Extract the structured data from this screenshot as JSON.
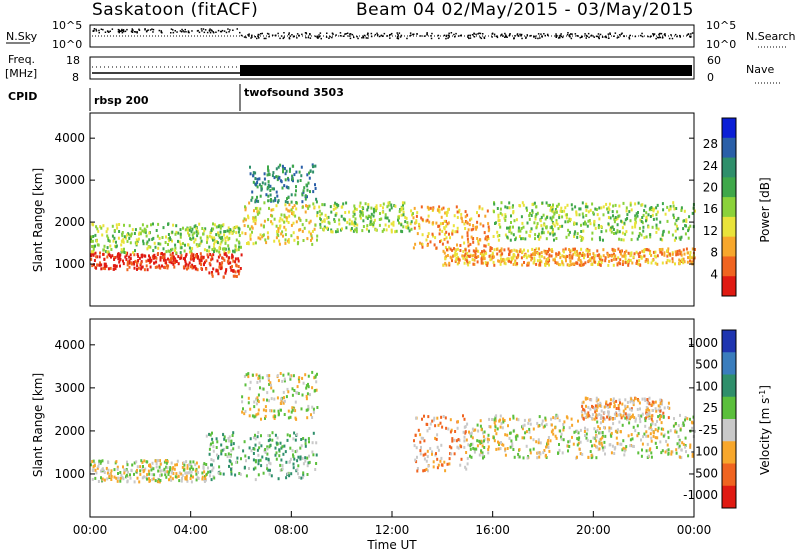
{
  "header": {
    "station": "Saskatoon (fitACF)",
    "beam_range": "Beam 04 02/May/2015 - 03/May/2015"
  },
  "top_panels": {
    "nsky_label": "N.Sky",
    "nsky_ticks": [
      "10^5",
      "10^0"
    ],
    "nsearch_label": "N.Search",
    "nsearch_ticks": [
      "10^5",
      "10^0"
    ],
    "freq_label": "Freq.",
    "freq_unit": "[MHz]",
    "freq_ticks": [
      "18",
      "8"
    ],
    "nave_label": "Nave",
    "nave_ticks": [
      "60",
      "0"
    ],
    "cpid_label": "CPID",
    "cpid_segments": [
      {
        "label": "rbsp 200",
        "start_hour": 0
      },
      {
        "label": "twofsound 3503",
        "start_hour": 6
      }
    ]
  },
  "chart_data": [
    {
      "type": "heatmap",
      "ylabel": "Slant Range [km]",
      "yticks": [
        "1000",
        "2000",
        "3000",
        "4000"
      ],
      "colorbar": {
        "label": "Power [dB]",
        "ticks": [
          "4",
          "8",
          "12",
          "16",
          "20",
          "24",
          "28"
        ],
        "colors": [
          "#0b1fd6",
          "#2a5fa8",
          "#2f8f6b",
          "#3fa84a",
          "#8bd23a",
          "#e9e33a",
          "#f7a72c",
          "#f06420",
          "#e01a12"
        ]
      },
      "scatter_bands": [
        {
          "t0": 0.0,
          "t1": 4.6,
          "r0": 900,
          "r1": 1300,
          "level": 8
        },
        {
          "t0": 0.0,
          "t1": 6.0,
          "r0": 1300,
          "r1": 2000,
          "level": 4
        },
        {
          "t0": 4.6,
          "t1": 6.0,
          "r0": 700,
          "r1": 1300,
          "level": 8
        },
        {
          "t0": 6.0,
          "t1": 9.0,
          "r0": 1500,
          "r1": 2500,
          "level": 5
        },
        {
          "t0": 6.3,
          "t1": 9.0,
          "r0": 2500,
          "r1": 3400,
          "level": 2
        },
        {
          "t0": 9.0,
          "t1": 12.8,
          "r0": 1800,
          "r1": 2500,
          "level": 4
        },
        {
          "t0": 12.8,
          "t1": 16.0,
          "r0": 1400,
          "r1": 2400,
          "level": 6
        },
        {
          "t0": 14.0,
          "t1": 24.0,
          "r0": 1000,
          "r1": 1400,
          "level": 6
        },
        {
          "t0": 16.0,
          "t1": 24.0,
          "r0": 1600,
          "r1": 2500,
          "level": 4
        }
      ]
    },
    {
      "type": "heatmap",
      "ylabel": "Slant Range [km]",
      "xlabel": "Time UT",
      "xticks": [
        "00:00",
        "04:00",
        "08:00",
        "12:00",
        "16:00",
        "20:00",
        "00:00"
      ],
      "yticks": [
        "1000",
        "2000",
        "3000",
        "4000"
      ],
      "colorbar": {
        "label": "Velocity [m s^-1]",
        "ticks": [
          "1000",
          "500",
          "100",
          "25",
          "-25",
          "-100",
          "-500",
          "-1000"
        ],
        "colors": [
          "#1f35b0",
          "#3a7dbd",
          "#2f8f6b",
          "#5bbf3c",
          "#c9c9c9",
          "#f7a72c",
          "#f06420",
          "#e01a12"
        ]
      },
      "scatter_bands": [
        {
          "t0": 0.0,
          "t1": 4.6,
          "r0": 850,
          "r1": 1350,
          "level": 4
        },
        {
          "t0": 4.6,
          "t1": 9.0,
          "r0": 900,
          "r1": 2000,
          "level": 3
        },
        {
          "t0": 6.0,
          "t1": 9.0,
          "r0": 2300,
          "r1": 3400,
          "level": 4
        },
        {
          "t0": 12.8,
          "t1": 15.0,
          "r0": 1100,
          "r1": 2400,
          "level": 5
        },
        {
          "t0": 15.0,
          "t1": 24.0,
          "r0": 1400,
          "r1": 2400,
          "level": 4
        },
        {
          "t0": 19.5,
          "t1": 23.0,
          "r0": 2300,
          "r1": 2800,
          "level": 5
        }
      ]
    }
  ]
}
